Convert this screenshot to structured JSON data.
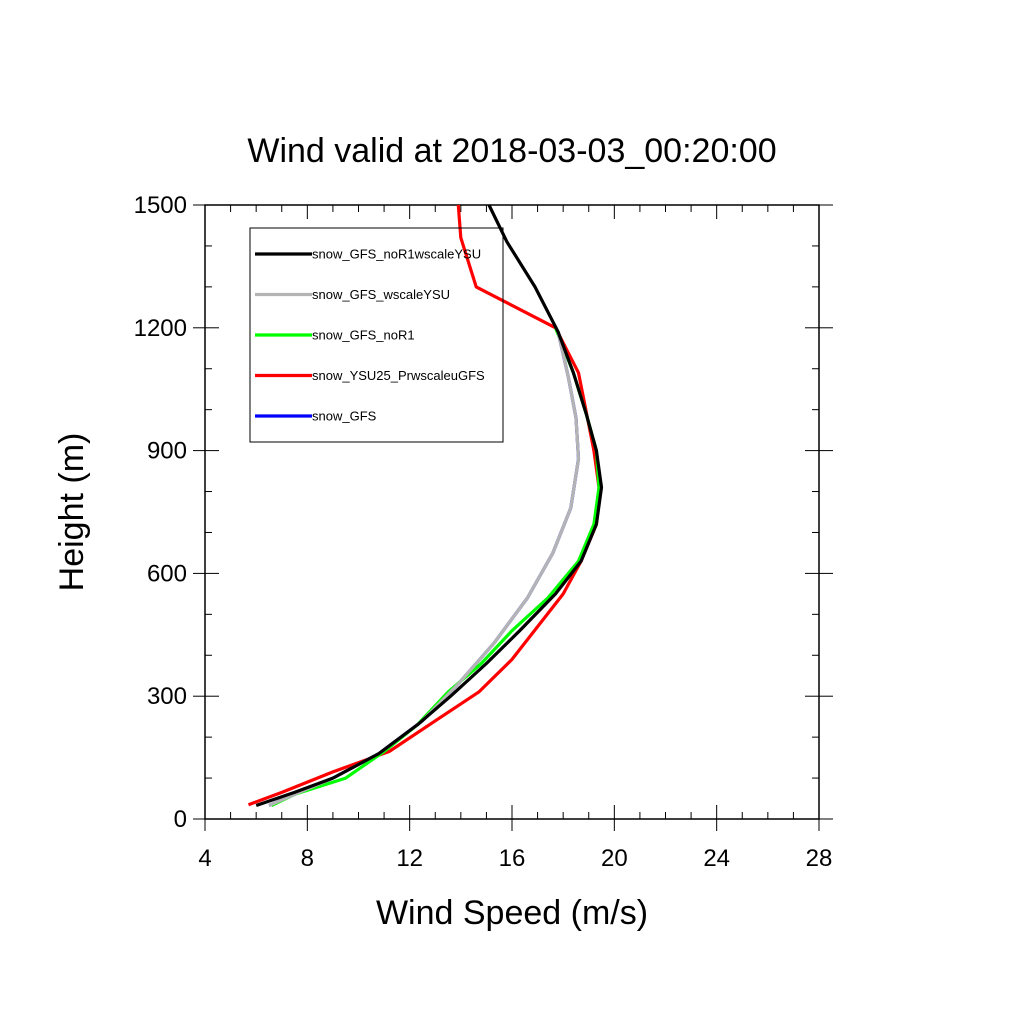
{
  "chart_data": {
    "type": "line",
    "title": "Wind valid at 2018-03-03_00:20:00",
    "xlabel": "Wind Speed (m/s)",
    "ylabel": "Height (m)",
    "xlim": [
      4,
      28
    ],
    "ylim": [
      0,
      1500
    ],
    "xticks": [
      "4",
      "8",
      "12",
      "16",
      "20",
      "24",
      "28"
    ],
    "yticks": [
      "0",
      "300",
      "600",
      "900",
      "1200",
      "1500"
    ],
    "grid": false,
    "legend_position": "top-left",
    "series": [
      {
        "name": "snow_GFS",
        "color": "#0000ff",
        "points": [
          [
            6.5,
            33
          ],
          [
            7.5,
            60
          ],
          [
            9.0,
            100
          ],
          [
            10.8,
            160
          ],
          [
            12.5,
            240
          ],
          [
            13.9,
            330
          ],
          [
            15.3,
            430
          ],
          [
            16.6,
            540
          ],
          [
            17.6,
            650
          ],
          [
            18.3,
            760
          ],
          [
            18.6,
            880
          ],
          [
            18.5,
            980
          ],
          [
            18.2,
            1080
          ],
          [
            17.8,
            1190
          ]
        ]
      },
      {
        "name": "snow_YSU25_PrwscaleuGFS",
        "color": "#ff0000",
        "points": [
          [
            5.7,
            35
          ],
          [
            7.0,
            65
          ],
          [
            9.0,
            115
          ],
          [
            11.2,
            165
          ],
          [
            13.0,
            240
          ],
          [
            14.7,
            310
          ],
          [
            16.0,
            390
          ],
          [
            17.0,
            470
          ],
          [
            18.0,
            550
          ],
          [
            18.7,
            630
          ],
          [
            19.3,
            720
          ],
          [
            19.4,
            810
          ],
          [
            19.2,
            900
          ],
          [
            18.6,
            1090
          ],
          [
            17.7,
            1200
          ],
          [
            14.6,
            1300
          ],
          [
            14.0,
            1420
          ],
          [
            13.9,
            1500
          ]
        ]
      },
      {
        "name": "snow_GFS_noR1",
        "color": "#00ff00",
        "points": [
          [
            6.6,
            33
          ],
          [
            7.5,
            60
          ],
          [
            9.5,
            100
          ],
          [
            11.0,
            165
          ],
          [
            12.3,
            230
          ],
          [
            13.5,
            310
          ],
          [
            14.8,
            380
          ],
          [
            16.0,
            460
          ],
          [
            17.4,
            540
          ],
          [
            18.6,
            630
          ],
          [
            19.2,
            720
          ],
          [
            19.4,
            810
          ],
          [
            19.3,
            900
          ],
          [
            18.9,
            990
          ],
          [
            18.4,
            1090
          ],
          [
            17.7,
            1200
          ]
        ]
      },
      {
        "name": "snow_GFS_wscaleYSU",
        "color": "#b4b4b4",
        "points": [
          [
            6.5,
            33
          ],
          [
            7.5,
            60
          ],
          [
            9.0,
            100
          ],
          [
            10.8,
            160
          ],
          [
            12.5,
            240
          ],
          [
            13.9,
            330
          ],
          [
            15.3,
            430
          ],
          [
            16.6,
            540
          ],
          [
            17.6,
            650
          ],
          [
            18.3,
            760
          ],
          [
            18.6,
            880
          ],
          [
            18.5,
            980
          ],
          [
            18.2,
            1080
          ],
          [
            17.8,
            1190
          ]
        ]
      },
      {
        "name": "snow_GFS_noR1wscaleYSU",
        "color": "#000000",
        "points": [
          [
            6.0,
            33
          ],
          [
            7.5,
            65
          ],
          [
            9.0,
            100
          ],
          [
            10.8,
            160
          ],
          [
            12.3,
            230
          ],
          [
            13.6,
            300
          ],
          [
            15.0,
            380
          ],
          [
            16.3,
            460
          ],
          [
            17.7,
            550
          ],
          [
            18.7,
            630
          ],
          [
            19.3,
            720
          ],
          [
            19.5,
            810
          ],
          [
            19.3,
            900
          ],
          [
            18.9,
            990
          ],
          [
            18.4,
            1090
          ],
          [
            17.8,
            1190
          ],
          [
            16.9,
            1300
          ],
          [
            15.8,
            1410
          ],
          [
            15.1,
            1500
          ]
        ]
      }
    ],
    "legend": [
      {
        "label": "snow_GFS_noR1wscaleYSU",
        "color": "#000000"
      },
      {
        "label": "snow_GFS_wscaleYSU",
        "color": "#b4b4b4"
      },
      {
        "label": "snow_GFS_noR1",
        "color": "#00ff00"
      },
      {
        "label": "snow_YSU25_PrwscaleuGFS",
        "color": "#ff0000"
      },
      {
        "label": "snow_GFS",
        "color": "#0000ff"
      }
    ]
  }
}
